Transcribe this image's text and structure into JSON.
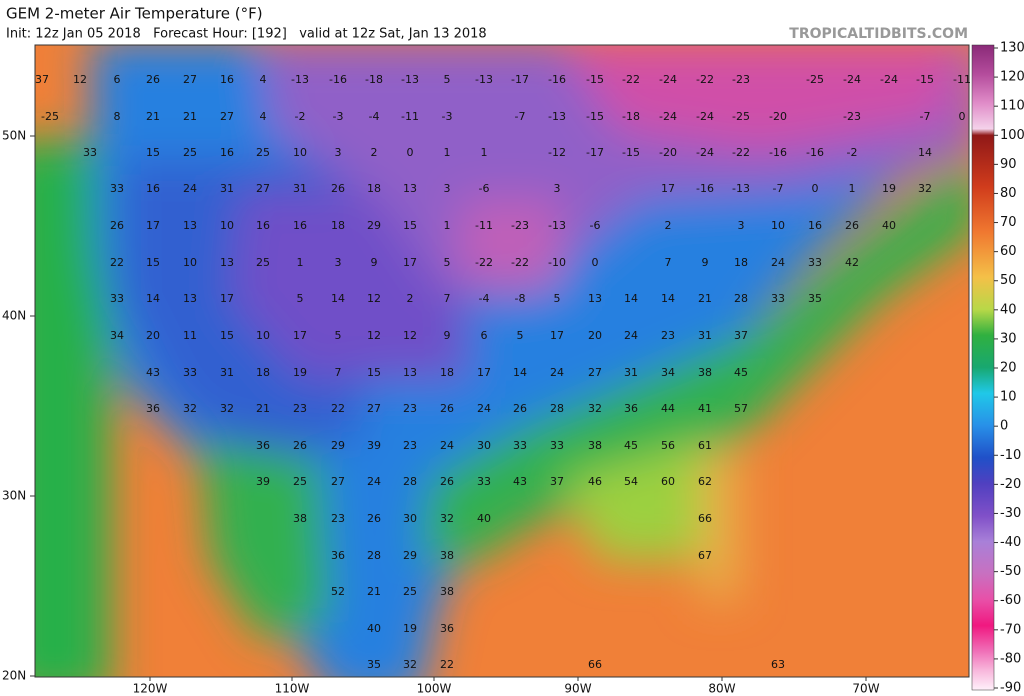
{
  "map": {
    "title": "GEM 2-meter Air Temperature (°F)",
    "subtitle": "Init: 12z Jan 05 2018   Forecast Hour: [192]   valid at 12z Sat, Jan 13 2018",
    "brand": "TROPICALTIDBITS.COM",
    "lat_labels": [
      "50N",
      "40N",
      "30N",
      "20N"
    ],
    "lon_labels": [
      "120W",
      "110W",
      "100W",
      "90W",
      "80W",
      "70W"
    ],
    "colorbar_labels": [
      130,
      120,
      110,
      100,
      90,
      80,
      70,
      60,
      50,
      40,
      30,
      20,
      10,
      0,
      -10,
      -20,
      -30,
      -40,
      -50,
      -60,
      -70,
      -80,
      -90
    ],
    "values": [
      [
        37,
        12,
        6,
        26,
        27,
        16,
        4,
        -13,
        -16,
        -18,
        -13,
        5,
        -13,
        -17,
        -16,
        -15,
        -22,
        -24,
        -22,
        -23,
        -25,
        -24,
        -24,
        -15,
        -11
      ],
      [
        -25,
        8,
        21,
        21,
        27,
        4,
        -2,
        -3,
        -4,
        -11,
        -3,
        -7,
        -13,
        -15,
        -18,
        -24,
        -24,
        -25,
        -20,
        -23,
        -7,
        0
      ],
      [
        33,
        15,
        25,
        16,
        25,
        10,
        3,
        2,
        0,
        1,
        1,
        -12,
        -17,
        -15,
        -20,
        -24,
        -22,
        -16,
        -16,
        -2,
        14
      ],
      [
        33,
        16,
        24,
        31,
        27,
        31,
        26,
        18,
        13,
        3,
        -6,
        3,
        17,
        -16,
        -13,
        -7,
        0,
        1,
        19,
        32
      ],
      [
        26,
        17,
        13,
        10,
        16,
        16,
        18,
        29,
        15,
        1,
        -11,
        -23,
        -13,
        -6,
        2,
        3,
        10,
        16,
        26,
        40
      ],
      [
        22,
        15,
        10,
        13,
        25,
        1,
        3,
        9,
        17,
        5,
        -22,
        -22,
        -10,
        0,
        7,
        9,
        18,
        24,
        33,
        42
      ],
      [
        33,
        14,
        13,
        17,
        5,
        14,
        12,
        2,
        7,
        -4,
        -8,
        5,
        13,
        14,
        14,
        21,
        28,
        33,
        35
      ],
      [
        34,
        20,
        11,
        15,
        10,
        17,
        5,
        12,
        12,
        9,
        6,
        5,
        17,
        20,
        24,
        23,
        31,
        37
      ],
      [
        43,
        33,
        31,
        18,
        19,
        7,
        15,
        13,
        18,
        17,
        14,
        24,
        27,
        31,
        34,
        38,
        45
      ],
      [
        36,
        32,
        32,
        21,
        23,
        22,
        27,
        23,
        26,
        24,
        26,
        28,
        32,
        36,
        44,
        41,
        57
      ],
      [
        36,
        26,
        29,
        39,
        23,
        24,
        30,
        33,
        33,
        38,
        45,
        56,
        61
      ],
      [
        39,
        25,
        27,
        24,
        28,
        26,
        33,
        43,
        37,
        46,
        54,
        60,
        62
      ],
      [
        38,
        23,
        26,
        30,
        32,
        40,
        66
      ],
      [
        36,
        28,
        29,
        38,
        67
      ],
      [
        52,
        21,
        25,
        38
      ],
      [
        40,
        19,
        36
      ],
      [
        35,
        32,
        22,
        66,
        63
      ]
    ]
  }
}
